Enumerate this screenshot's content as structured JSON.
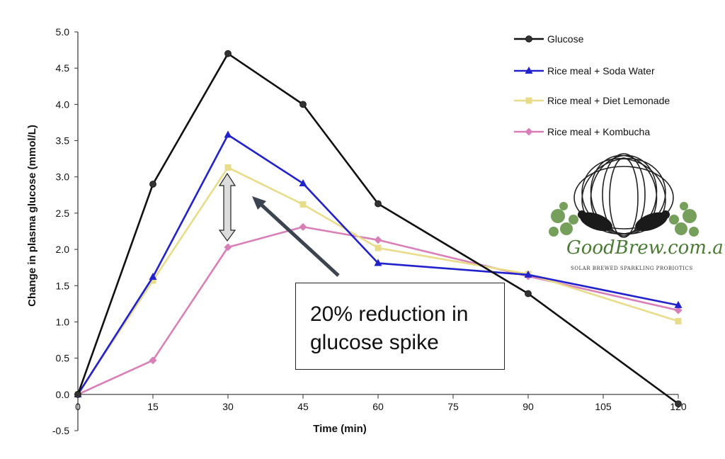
{
  "chart_data": {
    "type": "line",
    "title": "",
    "xlabel": "Time (min)",
    "ylabel": "Change in plasma glucose (mmol/L)",
    "xlim": [
      0,
      120
    ],
    "ylim": [
      -0.5,
      5.0
    ],
    "xticks": [
      0,
      15,
      30,
      45,
      60,
      75,
      90,
      105,
      120
    ],
    "yticks": [
      -0.5,
      0.0,
      0.5,
      1.0,
      1.5,
      2.0,
      2.5,
      3.0,
      3.5,
      4.0,
      4.5,
      5.0
    ],
    "grid": false,
    "legend_position": "top-right",
    "series": [
      {
        "name": "Glucose",
        "color": "#111111",
        "marker": "circle",
        "x": [
          0,
          15,
          30,
          45,
          60,
          90,
          120
        ],
        "y": [
          0.0,
          2.9,
          4.7,
          4.0,
          2.63,
          1.39,
          -0.13
        ]
      },
      {
        "name": "Rice meal + Soda Water",
        "color": "#2222cc",
        "marker": "triangle",
        "x": [
          0,
          15,
          30,
          45,
          60,
          90,
          120
        ],
        "y": [
          0.0,
          1.62,
          3.58,
          2.91,
          1.81,
          1.65,
          1.23
        ]
      },
      {
        "name": "Rice meal + Diet Lemonade",
        "color": "#e8dc8a",
        "marker": "square",
        "x": [
          0,
          15,
          30,
          45,
          60,
          90,
          120
        ],
        "y": [
          0.0,
          1.57,
          3.13,
          2.62,
          2.02,
          1.66,
          1.01
        ]
      },
      {
        "name": "Rice meal + Kombucha",
        "color": "#d97fb8",
        "marker": "diamond",
        "x": [
          0,
          15,
          30,
          45,
          60,
          90,
          120
        ],
        "y": [
          0.0,
          0.47,
          2.03,
          2.31,
          2.13,
          1.63,
          1.16
        ]
      }
    ],
    "annotations": [
      {
        "text": "20% reduction in glucose spike",
        "line1": "20% reduction in",
        "line2": "glucose spike"
      }
    ]
  },
  "logo": {
    "name": "GoodBrew.com.au",
    "tagline": "SOLAR BREWED SPARKLING PROBIOTICS"
  }
}
